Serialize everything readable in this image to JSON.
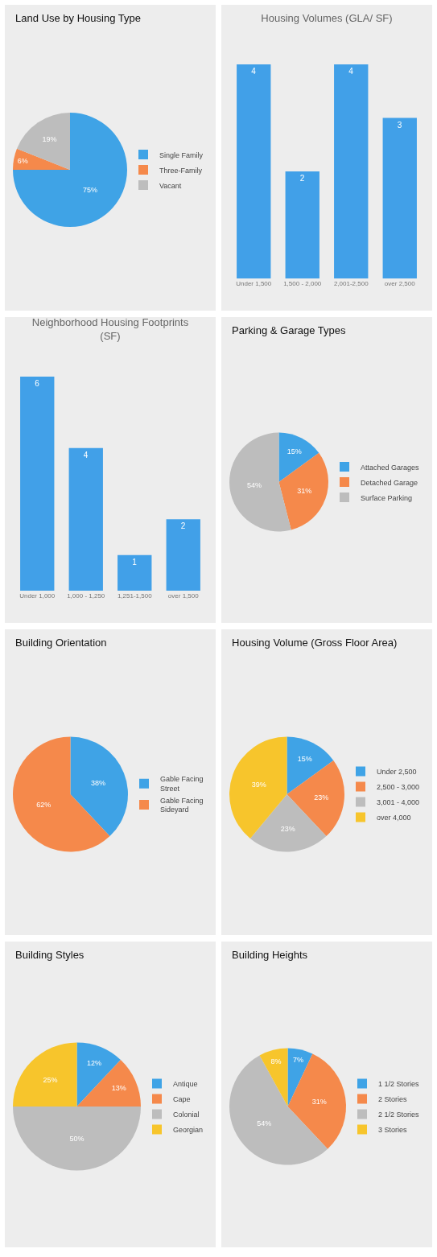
{
  "chart_data": [
    {
      "type": "pie",
      "title": "Land Use by Housing Type",
      "categories": [
        "Single Family",
        "Three-Family",
        "Vacant"
      ],
      "values": [
        75,
        6,
        19
      ],
      "colors": [
        "#3fa3e6",
        "#f5894b",
        "#bdbdbd"
      ],
      "value_labels": [
        "75%",
        "6%",
        "19%"
      ],
      "legend": "right"
    },
    {
      "type": "bar",
      "title": "Housing Volumes (GLA/ SF)",
      "categories": [
        "Under 1,500",
        "1,500 - 2,000",
        "2,001-2,500",
        "over 2,500"
      ],
      "values": [
        4,
        2,
        4,
        3
      ],
      "color": "#41a0e8",
      "data_labels": true
    },
    {
      "type": "bar",
      "title": "Neighborhood Housing Footprints\n(SF)",
      "categories": [
        "Under 1,000",
        "1,000 - 1,250",
        "1,251-1,500",
        "over 1,500"
      ],
      "values": [
        6,
        4,
        1,
        2
      ],
      "color": "#41a0e8",
      "data_labels": true
    },
    {
      "type": "pie",
      "title": "Parking & Garage Types",
      "categories": [
        "Attached Garages",
        "Detached Garage",
        "Surface Parking"
      ],
      "values": [
        15,
        31,
        54
      ],
      "colors": [
        "#3fa3e6",
        "#f5894b",
        "#bdbdbd"
      ],
      "value_labels": [
        "15%",
        "31%",
        "54%"
      ],
      "legend": "right"
    },
    {
      "type": "pie",
      "title": "Building Orientation",
      "categories": [
        "Gable Facing\nStreet",
        "Gable Facing\nSideyard"
      ],
      "values": [
        38,
        62
      ],
      "colors": [
        "#3fa3e6",
        "#f5894b"
      ],
      "value_labels": [
        "38%",
        "62%"
      ],
      "legend": "right"
    },
    {
      "type": "pie",
      "title": "Housing Volume (Gross Floor Area)",
      "categories": [
        "Under 2,500",
        "2,500 - 3,000",
        "3,001 - 4,000",
        "over 4,000"
      ],
      "values": [
        15,
        23,
        23,
        39
      ],
      "colors": [
        "#3fa3e6",
        "#f5894b",
        "#bdbdbd",
        "#f7c52c"
      ],
      "value_labels": [
        "15%",
        "23%",
        "23%",
        "39%"
      ],
      "legend": "right"
    },
    {
      "type": "pie",
      "title": "Building Styles",
      "categories": [
        "Antique",
        "Cape",
        "Colonial",
        "Georgian"
      ],
      "values": [
        12,
        13,
        50,
        25
      ],
      "colors": [
        "#3fa3e6",
        "#f5894b",
        "#bdbdbd",
        "#f7c52c"
      ],
      "value_labels": [
        "12%",
        "13%",
        "50%",
        "25%"
      ],
      "legend": "right"
    },
    {
      "type": "pie",
      "title": "Building Heights",
      "categories": [
        "1 1/2 Stories",
        "2 Stories",
        "2 1/2 Stories",
        "3 Stories"
      ],
      "values": [
        7,
        31,
        54,
        8
      ],
      "colors": [
        "#3fa3e6",
        "#f5894b",
        "#bdbdbd",
        "#f7c52c"
      ],
      "value_labels": [
        "7%",
        "31%",
        "54%",
        "8%"
      ],
      "legend": "right"
    }
  ]
}
